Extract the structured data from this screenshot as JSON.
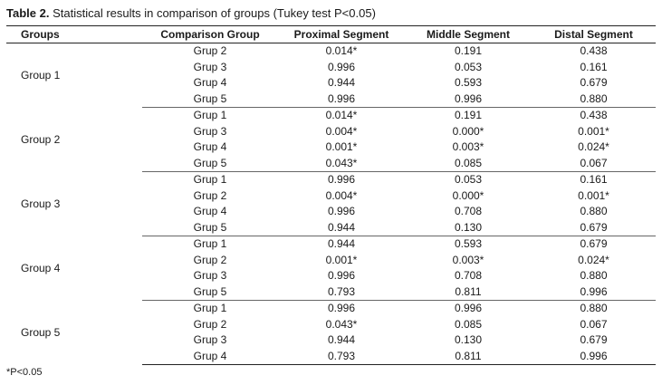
{
  "caption": {
    "label": "Table 2.",
    "text": "Statistical results in comparison of groups (Tukey test P<0.05)"
  },
  "columns": [
    "Groups",
    "Comparison Group",
    "Proximal Segment",
    "Middle Segment",
    "Distal Segment"
  ],
  "groups": [
    {
      "name": "Group 1",
      "rows": [
        [
          "Grup 2",
          "0.014*",
          "0.191",
          "0.438"
        ],
        [
          "Grup 3",
          "0.996",
          "0.053",
          "0.161"
        ],
        [
          "Grup 4",
          "0.944",
          "0.593",
          "0.679"
        ],
        [
          "Grup 5",
          "0.996",
          "0.996",
          "0.880"
        ]
      ]
    },
    {
      "name": "Group 2",
      "rows": [
        [
          "Grup 1",
          "0.014*",
          "0.191",
          "0.438"
        ],
        [
          "Grup 3",
          "0.004*",
          "0.000*",
          "0.001*"
        ],
        [
          "Grup 4",
          "0.001*",
          "0.003*",
          "0.024*"
        ],
        [
          "Grup 5",
          "0.043*",
          "0.085",
          "0.067"
        ]
      ]
    },
    {
      "name": "Group 3",
      "rows": [
        [
          "Grup 1",
          "0.996",
          "0.053",
          "0.161"
        ],
        [
          "Grup 2",
          "0.004*",
          "0.000*",
          "0.001*"
        ],
        [
          "Grup 4",
          "0.996",
          "0.708",
          "0.880"
        ],
        [
          "Grup 5",
          "0.944",
          "0.130",
          "0.679"
        ]
      ]
    },
    {
      "name": "Group 4",
      "rows": [
        [
          "Grup 1",
          "0.944",
          "0.593",
          "0.679"
        ],
        [
          "Grup 2",
          "0.001*",
          "0.003*",
          "0.024*"
        ],
        [
          "Grup 3",
          "0.996",
          "0.708",
          "0.880"
        ],
        [
          "Grup 5",
          "0.793",
          "0.811",
          "0.996"
        ]
      ]
    },
    {
      "name": "Group 5",
      "rows": [
        [
          "Grup 1",
          "0.996",
          "0.996",
          "0.880"
        ],
        [
          "Grup 2",
          "0.043*",
          "0.085",
          "0.067"
        ],
        [
          "Grup 3",
          "0.944",
          "0.130",
          "0.679"
        ],
        [
          "Grup 4",
          "0.793",
          "0.811",
          "0.996"
        ]
      ]
    }
  ],
  "footnote": "*P<0.05"
}
